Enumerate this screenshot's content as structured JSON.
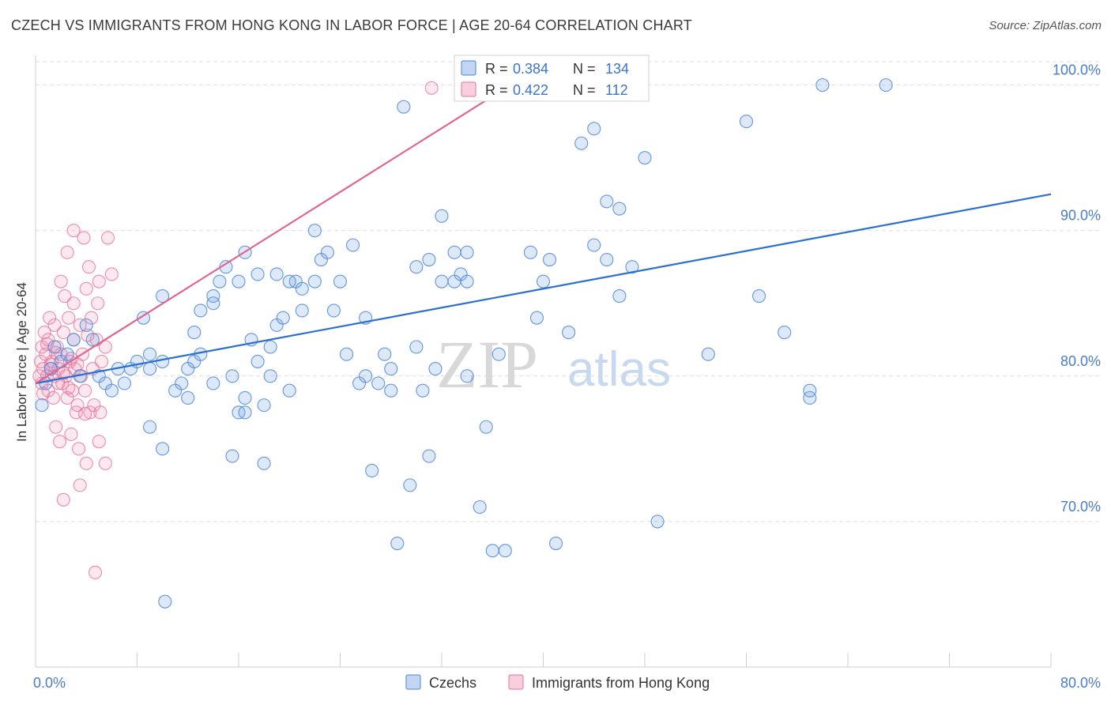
{
  "title": "CZECH VS IMMIGRANTS FROM HONG KONG IN LABOR FORCE | AGE 20-64 CORRELATION CHART",
  "source": "Source: ZipAtlas.com",
  "watermark": {
    "zip": "ZIP",
    "atlas": "atlas"
  },
  "colors": {
    "blue": "#4a86d8",
    "blue_fill": "rgba(120,165,230,0.25)",
    "blue_line": "#2c6fd0",
    "pink": "#e8709a",
    "pink_fill": "rgba(240,150,180,0.22)",
    "pink_line": "#e0648e",
    "tick_text": "#4a7cc7",
    "grid": "#dedede"
  },
  "chart_data": {
    "type": "scatter",
    "title": "CZECH VS IMMIGRANTS FROM HONG KONG IN LABOR FORCE | AGE 20-64 CORRELATION CHART",
    "xlabel": "",
    "ylabel": "In Labor Force | Age 20-64",
    "xlim": [
      0,
      80
    ],
    "ylim": [
      60,
      101.5
    ],
    "x_tick_labels": [
      "0.0%",
      "80.0%"
    ],
    "y_ticks": [
      70,
      80,
      90,
      100
    ],
    "y_tick_labels": [
      "70.0%",
      "80.0%",
      "90.0%",
      "100.0%"
    ],
    "grid": "horizontal dashed",
    "legend": {
      "placement": "top-center",
      "entries": [
        {
          "series": "Czechs",
          "r_label": "R = ",
          "r": "0.384",
          "n_label": "N = ",
          "n": "134"
        },
        {
          "series": "Immigrants from Hong Kong",
          "r_label": "R = ",
          "r": "0.422",
          "n_label": "N = ",
          "n": "112"
        }
      ]
    },
    "series": [
      {
        "name": "Czechs",
        "color": "#4a86d8",
        "trend": {
          "x": [
            0,
            80
          ],
          "y": [
            79.5,
            92.5
          ]
        },
        "points": [
          [
            0.5,
            78
          ],
          [
            0.8,
            79.5
          ],
          [
            1.2,
            80.5
          ],
          [
            1.5,
            82
          ],
          [
            2,
            81
          ],
          [
            2.5,
            81.5
          ],
          [
            3,
            82.5
          ],
          [
            3.5,
            80
          ],
          [
            4,
            83.5
          ],
          [
            4.5,
            82.5
          ],
          [
            5,
            80
          ],
          [
            5.5,
            79.5
          ],
          [
            6,
            79
          ],
          [
            6.5,
            80.5
          ],
          [
            7,
            79.5
          ],
          [
            7.5,
            80.5
          ],
          [
            8,
            81
          ],
          [
            8.5,
            84
          ],
          [
            9,
            80.5
          ],
          [
            9,
            81.5
          ],
          [
            9,
            76.5
          ],
          [
            10,
            85.5
          ],
          [
            10,
            81
          ],
          [
            10,
            75
          ],
          [
            11,
            79
          ],
          [
            11.5,
            79.5
          ],
          [
            12,
            78.5
          ],
          [
            12,
            80.5
          ],
          [
            12.5,
            81
          ],
          [
            12.5,
            83
          ],
          [
            13,
            84.5
          ],
          [
            13,
            81.5
          ],
          [
            14,
            85.5
          ],
          [
            14,
            85
          ],
          [
            14,
            79.5
          ],
          [
            14.5,
            86.5
          ],
          [
            15,
            87.5
          ],
          [
            15.5,
            80
          ],
          [
            15.5,
            74.5
          ],
          [
            16,
            86.5
          ],
          [
            16,
            77.5
          ],
          [
            16.5,
            77.5
          ],
          [
            16.5,
            78.5
          ],
          [
            16.5,
            88.5
          ],
          [
            17,
            82.5
          ],
          [
            17.5,
            87
          ],
          [
            17.5,
            81
          ],
          [
            18,
            74
          ],
          [
            18,
            78
          ],
          [
            18.5,
            80
          ],
          [
            18.5,
            82
          ],
          [
            19,
            87
          ],
          [
            19,
            83.5
          ],
          [
            19.5,
            84
          ],
          [
            20,
            79
          ],
          [
            20.5,
            86.5
          ],
          [
            21,
            84.5
          ],
          [
            21,
            86
          ],
          [
            22,
            90
          ],
          [
            22,
            86.5
          ],
          [
            22.5,
            88
          ],
          [
            23,
            88.5
          ],
          [
            23.5,
            84.5
          ],
          [
            24,
            86.5
          ],
          [
            24.5,
            81.5
          ],
          [
            25,
            89
          ],
          [
            25.5,
            79.5
          ],
          [
            26,
            84
          ],
          [
            26.5,
            73.5
          ],
          [
            27,
            79.5
          ],
          [
            27.5,
            81.5
          ],
          [
            28,
            80.5
          ],
          [
            28,
            79
          ],
          [
            28.5,
            68.5
          ],
          [
            29,
            98.5
          ],
          [
            29.5,
            72.5
          ],
          [
            30,
            87.5
          ],
          [
            30.5,
            79
          ],
          [
            31,
            74.5
          ],
          [
            31,
            88
          ],
          [
            31.5,
            80.5
          ],
          [
            32,
            86.5
          ],
          [
            32,
            91
          ],
          [
            33,
            86.5
          ],
          [
            33,
            88.5
          ],
          [
            33.5,
            87
          ],
          [
            34,
            88.5
          ],
          [
            34,
            86.5
          ],
          [
            35,
            71
          ],
          [
            35.5,
            76.5
          ],
          [
            36,
            68
          ],
          [
            36.5,
            81.5
          ],
          [
            37,
            68
          ],
          [
            39,
            88.5
          ],
          [
            39.5,
            84
          ],
          [
            40,
            86.5
          ],
          [
            40.5,
            88
          ],
          [
            41,
            68.5
          ],
          [
            42,
            83
          ],
          [
            43,
            96
          ],
          [
            44,
            89
          ],
          [
            44,
            97
          ],
          [
            45,
            92
          ],
          [
            45,
            88
          ],
          [
            46,
            91.5
          ],
          [
            46,
            85.5
          ],
          [
            47,
            87.5
          ],
          [
            48,
            95
          ],
          [
            49,
            70
          ],
          [
            53,
            81.5
          ],
          [
            56,
            97.5
          ],
          [
            57,
            85.5
          ],
          [
            59,
            83
          ],
          [
            61,
            78.5
          ],
          [
            61,
            79
          ],
          [
            62,
            100
          ],
          [
            67,
            100
          ],
          [
            40.5,
            100
          ],
          [
            10.2,
            64.5
          ],
          [
            30,
            82
          ],
          [
            20,
            86.5
          ],
          [
            26,
            80
          ],
          [
            34,
            80
          ]
        ]
      },
      {
        "name": "Immigrants from Hong Kong",
        "color": "#e8709a",
        "trend": {
          "x": [
            0,
            36.5
          ],
          "y": [
            79.5,
            99.5
          ]
        },
        "points": [
          [
            0.3,
            80
          ],
          [
            0.4,
            81
          ],
          [
            0.5,
            79.5
          ],
          [
            0.5,
            82
          ],
          [
            0.6,
            80.5
          ],
          [
            0.7,
            83
          ],
          [
            0.8,
            81.5
          ],
          [
            0.9,
            80
          ],
          [
            1,
            79
          ],
          [
            1,
            82.5
          ],
          [
            1.1,
            84
          ],
          [
            1.2,
            80.5
          ],
          [
            1.3,
            81
          ],
          [
            1.4,
            78.5
          ],
          [
            1.5,
            83.5
          ],
          [
            1.5,
            80
          ],
          [
            1.6,
            76.5
          ],
          [
            1.7,
            82
          ],
          [
            1.8,
            80.5
          ],
          [
            1.9,
            75.5
          ],
          [
            2,
            86.5
          ],
          [
            2,
            81.5
          ],
          [
            2.1,
            79.5
          ],
          [
            2.2,
            83
          ],
          [
            2.2,
            71.5
          ],
          [
            2.3,
            85.5
          ],
          [
            2.4,
            80
          ],
          [
            2.5,
            88.5
          ],
          [
            2.5,
            78.5
          ],
          [
            2.6,
            84
          ],
          [
            2.7,
            81
          ],
          [
            2.8,
            76
          ],
          [
            2.9,
            79
          ],
          [
            3,
            90
          ],
          [
            3,
            85
          ],
          [
            3,
            82.5
          ],
          [
            3.1,
            80.5
          ],
          [
            3.2,
            77.5
          ],
          [
            3.3,
            78
          ],
          [
            3.4,
            75
          ],
          [
            3.5,
            83.5
          ],
          [
            3.5,
            72.5
          ],
          [
            3.6,
            80
          ],
          [
            3.7,
            81.5
          ],
          [
            3.8,
            89.5
          ],
          [
            3.9,
            79
          ],
          [
            4,
            86
          ],
          [
            4,
            74
          ],
          [
            4.2,
            87.5
          ],
          [
            4.3,
            77.5
          ],
          [
            4.4,
            84
          ],
          [
            4.5,
            80.5
          ],
          [
            4.6,
            78
          ],
          [
            4.7,
            66.5
          ],
          [
            4.8,
            82.5
          ],
          [
            4.9,
            85
          ],
          [
            5,
            86.5
          ],
          [
            5,
            75.5
          ],
          [
            5.1,
            77.5
          ],
          [
            5.2,
            81
          ],
          [
            5.5,
            82
          ],
          [
            5.5,
            74
          ],
          [
            5.7,
            89.5
          ],
          [
            6,
            87
          ],
          [
            1.8,
            79.5
          ],
          [
            1.2,
            80.8
          ],
          [
            0.9,
            82.2
          ],
          [
            2.2,
            80.2
          ],
          [
            2.8,
            81.2
          ],
          [
            3.3,
            80.8
          ],
          [
            4.1,
            82.8
          ],
          [
            1.6,
            81.6
          ],
          [
            0.6,
            78.8
          ],
          [
            2.6,
            79.2
          ],
          [
            3.9,
            77.4
          ],
          [
            31.2,
            99.8
          ]
        ]
      }
    ]
  },
  "bottom_legend": [
    {
      "label": "Czechs",
      "color": "blue"
    },
    {
      "label": "Immigrants from Hong Kong",
      "color": "pink"
    }
  ]
}
